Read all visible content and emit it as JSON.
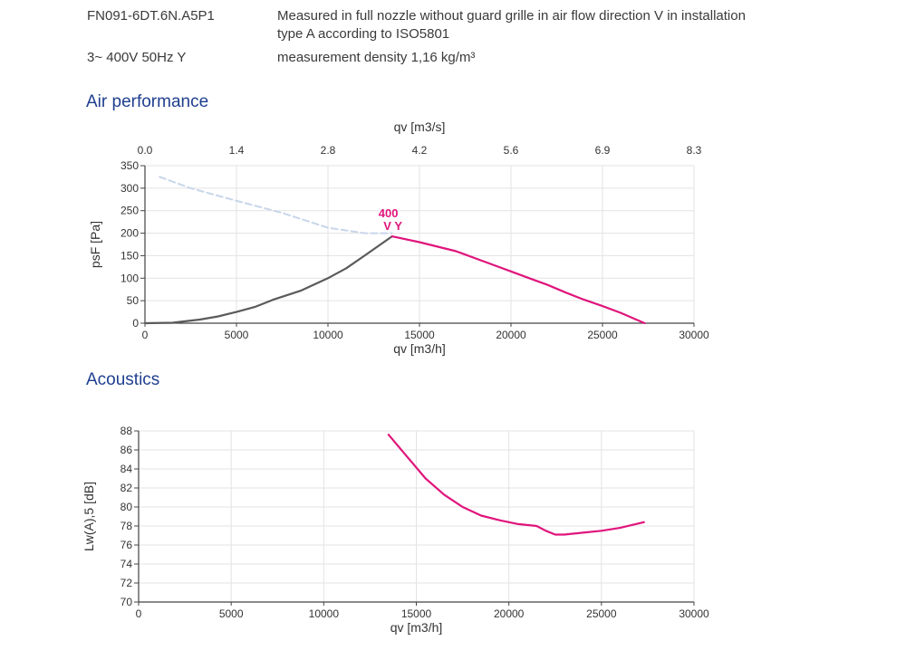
{
  "header": {
    "model": "FN091-6DT.6N.A5P1",
    "description_line1": "Measured in full nozzle without guard grille in air flow direction V in installation",
    "description_line2": "type A according to ISO5801",
    "supply": "3~ 400V 50Hz Y",
    "density": "measurement density 1,16 kg/m³"
  },
  "sections": {
    "air_title": "Air performance",
    "acoustics_title": "Acoustics"
  },
  "chart_data": [
    {
      "type": "line",
      "title": "Air performance",
      "xlabel": "qv [m3/h]",
      "ylabel": "psF [Pa]",
      "x2label": "qv [m3/s]",
      "xlim": [
        0,
        30000
      ],
      "ylim": [
        0,
        350
      ],
      "xticks": [
        "0",
        "5000",
        "10000",
        "15000",
        "20000",
        "25000",
        "30000"
      ],
      "yticks": [
        "0",
        "50",
        "100",
        "150",
        "200",
        "250",
        "300",
        "350"
      ],
      "x2ticks": [
        "0.0",
        "1.4",
        "2.8",
        "4.2",
        "5.6",
        "6.9",
        "8.3"
      ],
      "grid": true,
      "annotation": {
        "line1": "400",
        "line2": "V Y",
        "color": "#e0157c"
      },
      "series": [
        {
          "style": "dashed",
          "color": "#c8d6ea",
          "x": [
            800,
            2500,
            5000,
            7500,
            10000,
            12000,
            13500
          ],
          "y": [
            325,
            300,
            272,
            245,
            212,
            200,
            200
          ]
        },
        {
          "style": "solid",
          "color": "#5a5a5a",
          "x": [
            0,
            1500,
            3000,
            4000,
            5000,
            6000,
            7000,
            8500,
            10000,
            11000,
            12000,
            13500
          ],
          "y": [
            0,
            1,
            8,
            15,
            25,
            36,
            52,
            72,
            100,
            122,
            150,
            193
          ]
        },
        {
          "style": "solid",
          "color": "#e0157c",
          "x": [
            13500,
            15000,
            17000,
            19000,
            20000,
            21000,
            22000,
            23000,
            24000,
            25000,
            26000,
            27300
          ],
          "y": [
            193,
            180,
            160,
            130,
            115,
            100,
            85,
            68,
            52,
            38,
            23,
            0
          ]
        }
      ]
    },
    {
      "type": "line",
      "title": "Acoustics",
      "xlabel": "qv [m3/h]",
      "ylabel": "Lw(A),5 [dB]",
      "xlim": [
        0,
        30000
      ],
      "ylim": [
        70,
        88
      ],
      "xticks": [
        "0",
        "5000",
        "10000",
        "15000",
        "20000",
        "25000",
        "30000"
      ],
      "yticks": [
        "70",
        "72",
        "74",
        "76",
        "78",
        "80",
        "82",
        "84",
        "86",
        "88"
      ],
      "grid": true,
      "series": [
        {
          "style": "solid",
          "color": "#e0157c",
          "x": [
            13500,
            14500,
            15500,
            16500,
            17500,
            18500,
            19500,
            20500,
            21500,
            22000,
            22500,
            23000,
            24000,
            25000,
            26000,
            27300
          ],
          "y": [
            87.6,
            85.3,
            83.0,
            81.3,
            80.0,
            79.1,
            78.6,
            78.2,
            78.0,
            77.5,
            77.1,
            77.1,
            77.3,
            77.5,
            77.8,
            78.4
          ]
        }
      ]
    }
  ]
}
